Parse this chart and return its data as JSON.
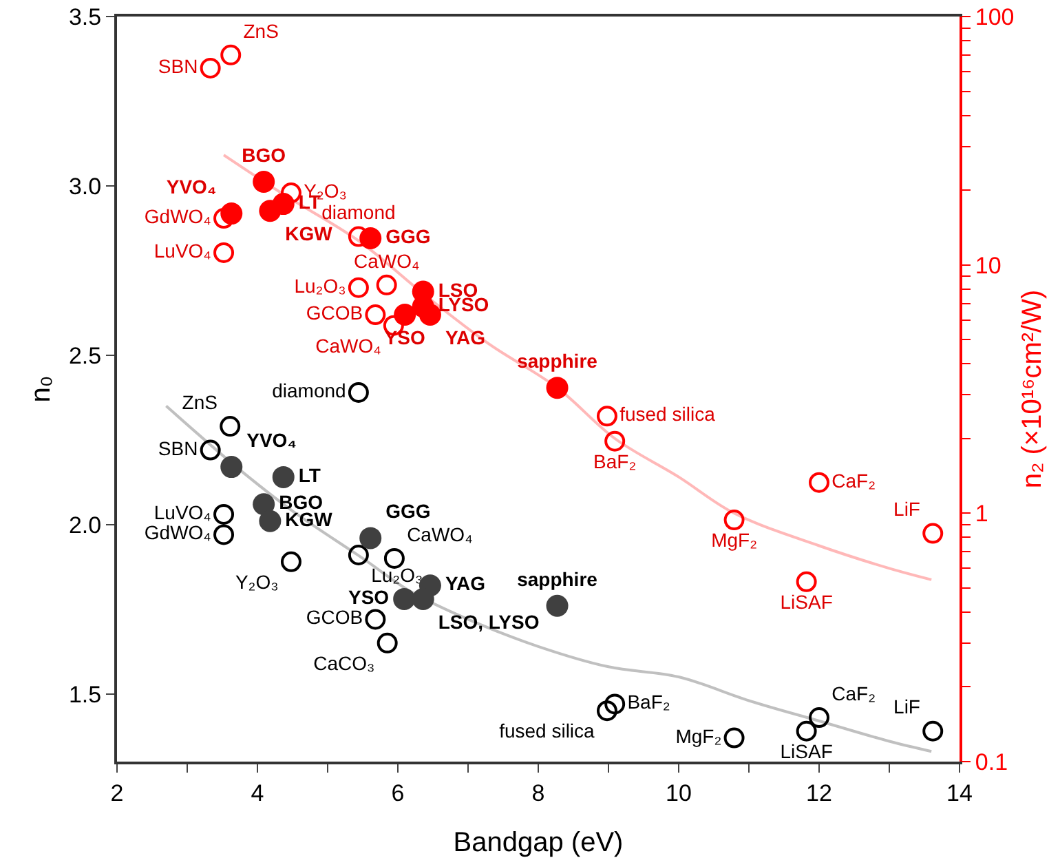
{
  "chart_data": {
    "type": "scatter",
    "xlabel": "Bandgap (eV)",
    "ylabel": "n₀",
    "y2label": "n₂ (×10¹⁶cm²/W)",
    "xlim": [
      2,
      14
    ],
    "xticks": [
      2,
      {
        "value": 3,
        "label": null
      },
      4,
      {
        "value": 5,
        "label": null
      },
      6,
      {
        "value": 7,
        "label": null
      },
      8,
      {
        "value": 9,
        "label": null
      },
      10,
      {
        "value": 11,
        "label": null
      },
      12,
      {
        "value": 13,
        "label": null
      },
      14
    ],
    "ylim": [
      1.3,
      3.5
    ],
    "yticks": [
      1.5,
      {
        "value": 2,
        "label": "2.0"
      },
      2.5,
      {
        "value": 3,
        "label": "3.0"
      },
      3.5
    ],
    "log": "y2",
    "y2lim": [
      0.1,
      100
    ],
    "y2ticks": [
      0.1,
      {
        "value": 0.2,
        "label": null
      },
      {
        "value": 0.3,
        "label": null
      },
      {
        "value": 0.4,
        "label": null
      },
      {
        "value": 0.5,
        "label": null
      },
      {
        "value": 0.6,
        "label": null
      },
      {
        "value": 0.7,
        "label": null
      },
      {
        "value": 0.8,
        "label": null
      },
      {
        "value": 0.9,
        "label": null
      },
      1,
      {
        "value": 2,
        "label": null
      },
      {
        "value": 3,
        "label": null
      },
      {
        "value": 4,
        "label": null
      },
      {
        "value": 5,
        "label": null
      },
      {
        "value": 6,
        "label": null
      },
      {
        "value": 7,
        "label": null
      },
      {
        "value": 8,
        "label": null
      },
      {
        "value": 9,
        "label": null
      },
      10,
      {
        "value": 20,
        "label": null
      },
      {
        "value": 30,
        "label": null
      },
      {
        "value": 40,
        "label": null
      },
      {
        "value": 50,
        "label": null
      },
      {
        "value": 60,
        "label": null
      },
      {
        "value": 70,
        "label": null
      },
      {
        "value": 80,
        "label": null
      },
      {
        "value": 90,
        "label": null
      },
      100
    ],
    "grid": false,
    "marker": "circle",
    "series": [
      {
        "type": "line",
        "color": "#c0c0c0",
        "marker": "none",
        "x": [
          2.7,
          3.7,
          4.5,
          5.5,
          6.2,
          7,
          8,
          9,
          10,
          11,
          12,
          13,
          13.6
        ],
        "values": [
          2.35,
          2.17,
          2.04,
          1.9,
          1.8,
          1.72,
          1.64,
          1.58,
          1.55,
          1.48,
          1.42,
          1.36,
          1.33
        ]
      },
      {
        "type": "line",
        "axis": "y2",
        "color": "#ffb8b8",
        "marker": "none",
        "x": [
          3.52,
          4.4,
          5.44,
          6.4,
          7.3,
          8.27,
          9.09,
          10,
          10.79,
          12,
          13,
          13.6
        ],
        "values": [
          27.7,
          19,
          12.5,
          7.5,
          4.8,
          3.2,
          2.0,
          1.4,
          1.0,
          0.74,
          0.6,
          0.54
        ]
      },
      {
        "color": "#000000",
        "marker": "circle-open",
        "x": [
          5.44,
          3.61,
          3.33,
          3.52,
          3.52,
          5.44,
          5.95,
          4.48,
          5.68,
          5.85,
          8.98,
          9.09,
          10.79,
          11.82,
          12.0,
          13.62
        ],
        "values": [
          2.39,
          2.29,
          2.22,
          2.03,
          1.97,
          1.91,
          1.9,
          1.89,
          1.72,
          1.65,
          1.45,
          1.47,
          1.37,
          1.39,
          1.43,
          1.39
        ],
        "value_labels": [
          "diamond",
          "ZnS",
          "SBN",
          "LuVO₄",
          "GdWO₄",
          "Lu₂O₃",
          "CaWO₄",
          "Y₂O₃",
          "GCOB",
          "CaCO₃",
          "fused silica",
          "BaF₂",
          "MgF₂",
          "LiSAF",
          "CaF₂",
          "LiF"
        ]
      },
      {
        "color": "#404040",
        "x": [
          3.63,
          4.37,
          4.09,
          4.18,
          5.61,
          6.46,
          6.09,
          6.36,
          8.27
        ],
        "values": [
          2.17,
          2.14,
          2.06,
          2.01,
          1.96,
          1.82,
          1.78,
          1.78,
          1.76
        ],
        "value_labels": [
          "YVO₄",
          "LT",
          "BGO",
          "KGW",
          "GGG",
          "YAG",
          "YSO",
          "LSO, LYSO",
          "sapphire"
        ]
      },
      {
        "axis": "y2",
        "color": "#ff0000",
        "marker": "circle-open",
        "x": [
          3.33,
          3.62,
          4.48,
          3.52,
          3.52,
          5.44,
          5.84,
          5.44,
          5.68,
          5.94,
          8.98,
          9.09,
          12.0,
          10.79,
          13.62,
          11.82
        ],
        "values": [
          62,
          70,
          19.5,
          15.4,
          11.2,
          13.0,
          8.3,
          8.1,
          6.3,
          5.7,
          2.46,
          1.95,
          1.33,
          0.94,
          0.83,
          0.53
        ],
        "value_labels": [
          "SBN",
          "ZnS",
          "Y₂O₃",
          "GdWO₄",
          "LuVO₄",
          "diamond",
          "CaWO₄",
          "Lu₂O₃",
          "GCOB",
          "CaWO₄",
          "fused silica",
          "BaF₂",
          "CaF₂",
          "MgF₂",
          "LiF",
          "LiSAF"
        ]
      },
      {
        "axis": "y2",
        "color": "#ff0000",
        "x": [
          4.09,
          3.63,
          4.18,
          4.37,
          5.61,
          6.36,
          6.36,
          6.46,
          6.1,
          8.27
        ],
        "values": [
          21.6,
          16.1,
          16.5,
          17.6,
          12.8,
          7.8,
          6.8,
          6.3,
          6.3,
          3.2
        ],
        "value_labels": [
          "BGO",
          "YVO₄",
          "KGW",
          "LT",
          "GGG",
          "LSO",
          "LYSO",
          "YAG",
          "YSO",
          "sapphire"
        ]
      }
    ]
  }
}
